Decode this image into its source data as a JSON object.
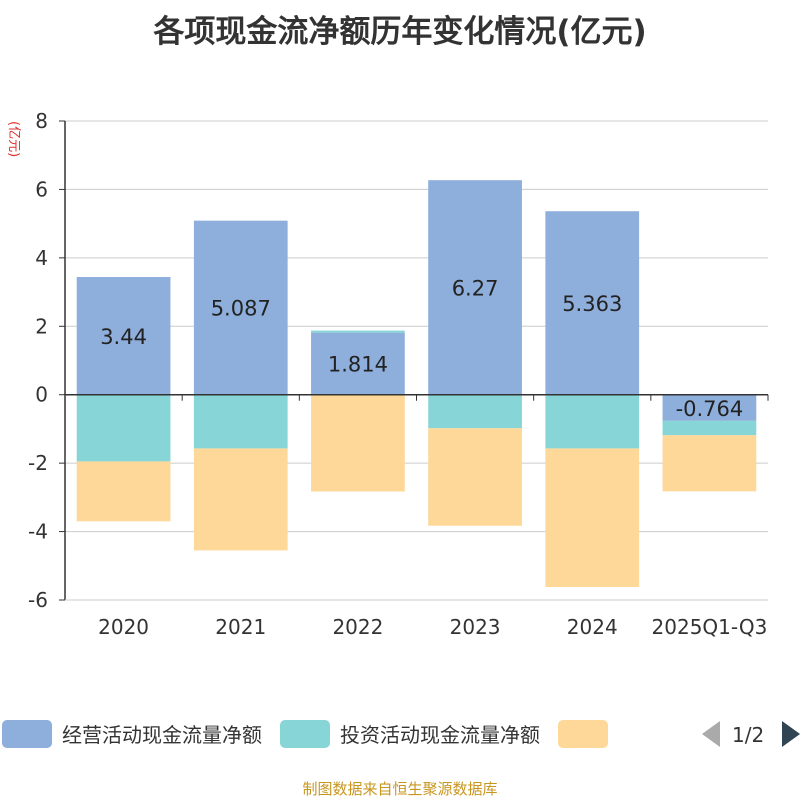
{
  "chart_data": {
    "type": "bar",
    "stacked": true,
    "title": "各项现金流净额历年变化情况(亿元)",
    "ylabel": "(亿元)",
    "ylim": [
      -6,
      8
    ],
    "yticks": [
      8,
      6,
      4,
      2,
      0,
      -2,
      -4,
      -6
    ],
    "categories": [
      "2020",
      "2021",
      "2022",
      "2023",
      "2024",
      "2025Q1-Q3"
    ],
    "series": [
      {
        "name": "经营活动现金流量净额",
        "color": "#8eaedb",
        "values": [
          3.44,
          5.087,
          1.814,
          6.27,
          5.363,
          -0.764
        ],
        "labels": [
          "3.44",
          "5.087",
          "1.814",
          "6.27",
          "5.363",
          "-0.764"
        ]
      },
      {
        "name": "投资活动现金流量净额",
        "color": "#88d5d8",
        "values": [
          -1.95,
          -1.57,
          0.06,
          -0.98,
          -1.57,
          -0.42
        ]
      },
      {
        "name": "",
        "color": "#fdd898",
        "values": [
          -1.75,
          -2.98,
          -2.83,
          -2.85,
          -4.05,
          -1.64
        ]
      }
    ],
    "legend": {
      "position": "bottom",
      "page": "1/2"
    }
  },
  "footer": "制图数据来自恒生聚源数据库"
}
